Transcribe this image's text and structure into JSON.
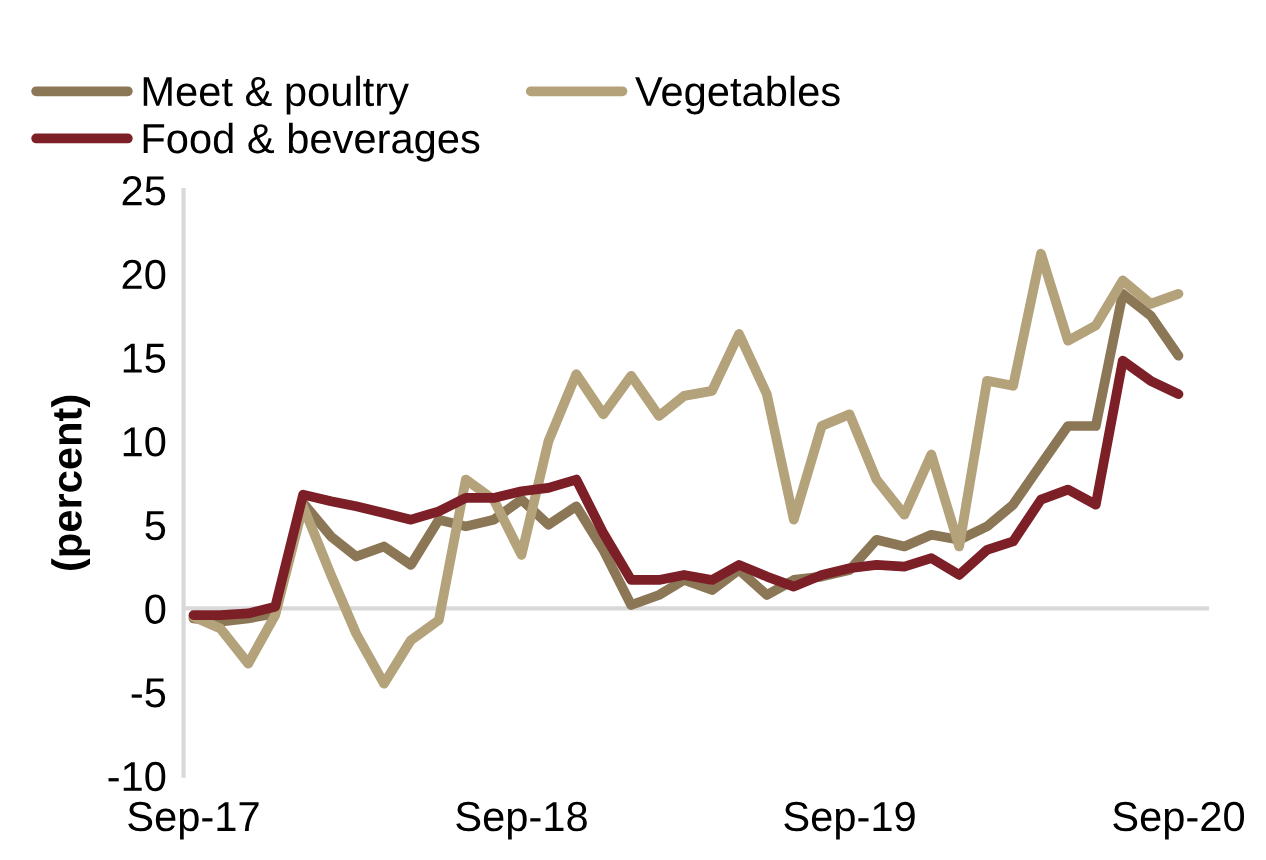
{
  "chart_data": {
    "type": "line",
    "ylabel": "(percent)",
    "x": [
      "2017-09",
      "2017-10",
      "2017-11",
      "2017-12",
      "2018-01",
      "2018-02",
      "2018-03",
      "2018-04",
      "2018-05",
      "2018-06",
      "2018-07",
      "2018-08",
      "2018-09",
      "2018-10",
      "2018-11",
      "2018-12",
      "2019-01",
      "2019-02",
      "2019-03",
      "2019-04",
      "2019-05",
      "2019-06",
      "2019-07",
      "2019-08",
      "2019-09",
      "2019-10",
      "2019-11",
      "2019-12",
      "2020-01",
      "2020-02",
      "2020-03",
      "2020-04",
      "2020-05",
      "2020-06",
      "2020-07",
      "2020-08",
      "2020-09"
    ],
    "series": [
      {
        "name": "Meet & poultry",
        "color": "#8b7656",
        "values": [
          -0.6,
          -0.8,
          -0.6,
          -0.3,
          6.3,
          4.3,
          3.1,
          3.7,
          2.6,
          5.3,
          4.9,
          5.3,
          6.5,
          5.0,
          6.1,
          3.5,
          0.2,
          0.8,
          1.7,
          1.1,
          2.3,
          0.8,
          1.7,
          1.9,
          2.3,
          4.1,
          3.7,
          4.4,
          4.1,
          4.9,
          6.2,
          8.6,
          10.9,
          10.9,
          18.8,
          17.5,
          15.1
        ]
      },
      {
        "name": "Vegetables",
        "color": "#b3a27a",
        "values": [
          -0.5,
          -1.2,
          -3.3,
          -0.4,
          6.1,
          2.0,
          -1.5,
          -4.5,
          -1.9,
          -0.7,
          7.7,
          6.5,
          3.2,
          10.0,
          14.0,
          11.6,
          13.9,
          11.5,
          12.7,
          13.0,
          16.4,
          12.8,
          5.3,
          10.9,
          11.6,
          7.7,
          5.6,
          9.2,
          3.7,
          13.6,
          13.3,
          21.2,
          16.0,
          16.9,
          19.6,
          18.2,
          18.8
        ]
      },
      {
        "name": "Food & beverages",
        "color": "#7d1f27",
        "values": [
          -0.4,
          -0.4,
          -0.3,
          0.1,
          6.8,
          6.4,
          6.1,
          5.7,
          5.3,
          5.8,
          6.6,
          6.6,
          7.0,
          7.2,
          7.7,
          4.5,
          1.7,
          1.7,
          2.0,
          1.7,
          2.6,
          1.9,
          1.3,
          2.0,
          2.4,
          2.6,
          2.5,
          3.0,
          2.0,
          3.5,
          4.0,
          6.5,
          7.1,
          6.2,
          14.8,
          13.6,
          12.8
        ]
      }
    ],
    "xlim": [
      "2017-08-21",
      "2020-10-05"
    ],
    "xticks": [
      {
        "value": "2017-09",
        "label": "Sep-17"
      },
      {
        "value": "2018-09",
        "label": "Sep-18"
      },
      {
        "value": "2019-09",
        "label": "Sep-19"
      },
      {
        "value": "2020-09",
        "label": "Sep-20"
      }
    ],
    "ylim": [
      -10,
      25
    ],
    "yticks": [
      -10,
      -5,
      0,
      5,
      10,
      15,
      20,
      25
    ],
    "ref_lines": [
      {
        "axis": "y",
        "value": 0,
        "color": "#d9d9d9"
      }
    ],
    "grid": false,
    "legend": "top",
    "marker": "none",
    "line_style": "solid"
  }
}
